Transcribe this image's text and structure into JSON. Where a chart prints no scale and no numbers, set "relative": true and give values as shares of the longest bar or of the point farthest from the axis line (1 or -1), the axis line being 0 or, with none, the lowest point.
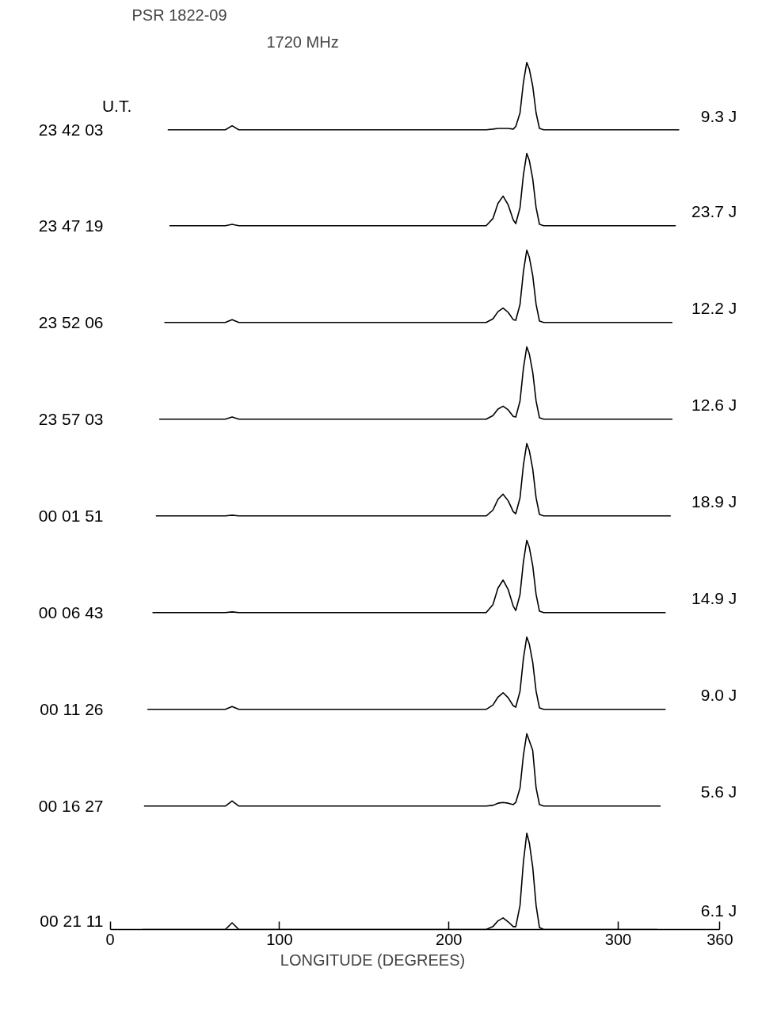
{
  "chart_data": [
    {
      "type": "line",
      "title": "PSR 1822-09",
      "subtitle": "1720 MHz",
      "legend_title": "U.T.",
      "relative": true,
      "xlim": [
        0,
        360
      ],
      "tick_labels": false,
      "annotations": [
        "9.3 J"
      ],
      "series": [
        {
          "name": "23 42 03",
          "color": "#000000",
          "x": [
            34,
            68,
            72,
            76,
            150,
            222,
            226,
            229,
            232,
            235,
            238,
            239.5,
            242,
            244,
            246,
            247.5,
            249.5,
            251.5,
            253.5,
            256,
            336
          ],
          "values": [
            0,
            0,
            0.06,
            0,
            0,
            0,
            0.01,
            0.02,
            0.02,
            0.02,
            0.01,
            0.05,
            0.25,
            0.7,
            1,
            0.9,
            0.65,
            0.25,
            0.02,
            0,
            0
          ]
        }
      ]
    },
    {
      "type": "line",
      "relative": true,
      "xlim": [
        0,
        360
      ],
      "tick_labels": false,
      "annotations": [
        "23.7 J"
      ],
      "series": [
        {
          "name": "23 47 19",
          "color": "#000000",
          "x": [
            35,
            68,
            72,
            76,
            150,
            222,
            226,
            229,
            232,
            235,
            238,
            239.5,
            242,
            244,
            246,
            247.5,
            249.5,
            251.5,
            253.5,
            256,
            334
          ],
          "values": [
            0,
            0,
            0.02,
            0,
            0,
            0,
            0.1,
            0.31,
            0.41,
            0.29,
            0.08,
            0.03,
            0.25,
            0.7,
            1,
            0.9,
            0.65,
            0.25,
            0.02,
            0,
            0
          ]
        }
      ]
    },
    {
      "type": "line",
      "relative": true,
      "xlim": [
        0,
        360
      ],
      "tick_labels": false,
      "annotations": [
        "12.2 J"
      ],
      "series": [
        {
          "name": "23 52 06",
          "color": "#000000",
          "x": [
            32,
            68,
            72,
            76,
            150,
            222,
            226,
            229,
            232,
            235,
            238,
            239.5,
            242,
            244,
            246,
            247.5,
            249.5,
            251.5,
            253.5,
            256,
            332
          ],
          "values": [
            0,
            0,
            0.04,
            0,
            0,
            0,
            0.05,
            0.15,
            0.2,
            0.14,
            0.04,
            0.03,
            0.25,
            0.7,
            1,
            0.9,
            0.65,
            0.25,
            0.02,
            0,
            0
          ]
        }
      ]
    },
    {
      "type": "line",
      "relative": true,
      "xlim": [
        0,
        360
      ],
      "tick_labels": false,
      "annotations": [
        "12.6 J"
      ],
      "series": [
        {
          "name": "23 57 03",
          "color": "#000000",
          "x": [
            29,
            68,
            72,
            76,
            150,
            222,
            226,
            229,
            232,
            235,
            238,
            239.5,
            242,
            244,
            246,
            247.5,
            249.5,
            251.5,
            253.5,
            256,
            332
          ],
          "values": [
            0,
            0,
            0.03,
            0,
            0,
            0,
            0.05,
            0.14,
            0.18,
            0.13,
            0.04,
            0.03,
            0.25,
            0.7,
            1,
            0.9,
            0.65,
            0.25,
            0.02,
            0,
            0
          ]
        }
      ]
    },
    {
      "type": "line",
      "relative": true,
      "xlim": [
        0,
        360
      ],
      "tick_labels": false,
      "annotations": [
        "18.9 J"
      ],
      "series": [
        {
          "name": "00 01 51",
          "color": "#000000",
          "x": [
            27,
            68,
            72,
            76,
            150,
            222,
            226,
            229,
            232,
            235,
            238,
            239.5,
            242,
            244,
            246,
            247.5,
            249.5,
            251.5,
            253.5,
            256,
            331
          ],
          "values": [
            0,
            0,
            0.01,
            0,
            0,
            0,
            0.08,
            0.23,
            0.3,
            0.21,
            0.06,
            0.03,
            0.25,
            0.7,
            1,
            0.9,
            0.65,
            0.25,
            0.02,
            0,
            0
          ]
        }
      ]
    },
    {
      "type": "line",
      "relative": true,
      "xlim": [
        0,
        360
      ],
      "tick_labels": false,
      "annotations": [
        "14.9 J"
      ],
      "series": [
        {
          "name": "00 06 43",
          "color": "#000000",
          "x": [
            25,
            68,
            72,
            76,
            150,
            222,
            226,
            229,
            232,
            235,
            238,
            239.5,
            242,
            244,
            246,
            247.5,
            249.5,
            251.5,
            253.5,
            256,
            328
          ],
          "values": [
            0,
            0,
            0.01,
            0,
            0,
            0,
            0.11,
            0.34,
            0.45,
            0.32,
            0.09,
            0.03,
            0.25,
            0.7,
            1,
            0.9,
            0.65,
            0.25,
            0.02,
            0,
            0
          ]
        }
      ]
    },
    {
      "type": "line",
      "relative": true,
      "xlim": [
        0,
        360
      ],
      "tick_labels": false,
      "annotations": [
        "9.0 J"
      ],
      "series": [
        {
          "name": "00 11 26",
          "color": "#000000",
          "x": [
            22,
            68,
            72,
            76,
            150,
            222,
            226,
            229,
            232,
            235,
            238,
            239.5,
            242,
            244,
            246,
            247.5,
            249.5,
            251.5,
            253.5,
            256,
            328
          ],
          "values": [
            0,
            0,
            0.04,
            0,
            0,
            0,
            0.06,
            0.17,
            0.23,
            0.16,
            0.05,
            0.03,
            0.25,
            0.7,
            1,
            0.9,
            0.65,
            0.25,
            0.02,
            0,
            0
          ]
        }
      ]
    },
    {
      "type": "line",
      "relative": true,
      "xlim": [
        0,
        360
      ],
      "tick_labels": false,
      "annotations": [
        "5.6 J"
      ],
      "series": [
        {
          "name": "00 16 27",
          "color": "#000000",
          "x": [
            20,
            68,
            72,
            76,
            150,
            222,
            226,
            229,
            232,
            235,
            238,
            239.5,
            242,
            244,
            246,
            247.5,
            249.5,
            251.5,
            253.5,
            256,
            325
          ],
          "values": [
            0,
            0,
            0.07,
            0,
            0,
            0,
            0.01,
            0.04,
            0.05,
            0.04,
            0.02,
            0.05,
            0.25,
            0.7,
            1,
            0.9,
            0.77,
            0.25,
            0.02,
            0,
            0
          ]
        }
      ]
    },
    {
      "type": "line",
      "relative": true,
      "xlim": [
        0,
        360
      ],
      "xticks": [
        0,
        100,
        200,
        300,
        360
      ],
      "xlabel": "LONGITUDE (DEGREES)",
      "tick_labels": "x",
      "annotations": [
        "6.1 J"
      ],
      "series": [
        {
          "name": "00 21 11",
          "color": "#000000",
          "x": [
            19,
            68,
            72,
            76,
            150,
            222,
            226,
            229,
            232,
            235,
            238,
            239.5,
            242,
            244,
            246,
            247.5,
            249.5,
            251.5,
            253.5,
            256,
            323
          ],
          "values": [
            0,
            0,
            0.07,
            0,
            0,
            0,
            0.03,
            0.09,
            0.12,
            0.08,
            0.03,
            0.03,
            0.25,
            0.7,
            1,
            0.9,
            0.65,
            0.25,
            0.02,
            0,
            0
          ]
        }
      ]
    }
  ]
}
